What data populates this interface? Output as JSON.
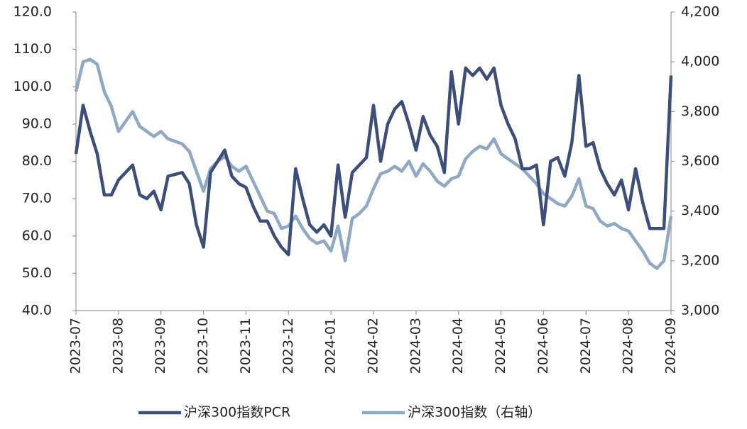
{
  "chart_data": {
    "type": "line",
    "categories": [
      "2023-07",
      null,
      null,
      null,
      null,
      null,
      "2023-08",
      null,
      null,
      null,
      null,
      null,
      "2023-09",
      null,
      null,
      null,
      null,
      null,
      "2023-10",
      null,
      null,
      null,
      null,
      null,
      "2023-11",
      null,
      null,
      null,
      null,
      null,
      "2023-12",
      null,
      null,
      null,
      null,
      null,
      "2024-01",
      null,
      null,
      null,
      null,
      null,
      "2024-02",
      null,
      null,
      null,
      null,
      null,
      "2024-03",
      null,
      null,
      null,
      null,
      null,
      "2024-04",
      null,
      null,
      null,
      null,
      null,
      "2024-05",
      null,
      null,
      null,
      null,
      null,
      "2024-06",
      null,
      null,
      null,
      null,
      null,
      "2024-07",
      null,
      null,
      null,
      null,
      null,
      "2024-08",
      null,
      null,
      null,
      null,
      null,
      "2024-09"
    ],
    "series": [
      {
        "name": "沪深300指数PCR",
        "color": "#3c4f7a",
        "values": [
          82,
          95,
          88,
          82,
          71,
          71,
          75,
          77,
          79,
          71,
          70,
          72,
          67,
          76,
          76.5,
          77,
          74,
          63,
          57,
          77,
          80,
          83,
          76,
          74,
          73,
          68,
          64,
          64,
          60,
          57,
          55,
          78,
          70,
          63,
          61,
          63,
          60,
          79,
          65,
          77,
          79,
          81,
          95,
          80,
          90,
          94,
          96,
          90,
          83,
          92,
          87,
          84,
          77,
          104,
          90,
          105,
          103,
          105,
          102,
          105,
          95,
          90,
          86,
          78,
          78,
          79,
          63,
          80,
          81,
          76,
          85,
          103,
          84,
          85,
          78,
          74,
          71,
          75,
          67,
          78,
          69,
          62,
          62,
          62,
          103
        ]
      },
      {
        "name": "沪深300指数（右轴）",
        "color": "#8fa8c6",
        "axis": "y2",
        "values": [
          3880,
          4000,
          4010,
          3990,
          3880,
          3820,
          3720,
          3760,
          3800,
          3740,
          3720,
          3700,
          3720,
          3690,
          3680,
          3670,
          3640,
          3560,
          3480,
          3570,
          3600,
          3620,
          3580,
          3560,
          3580,
          3520,
          3460,
          3400,
          3390,
          3330,
          3340,
          3380,
          3330,
          3290,
          3270,
          3280,
          3240,
          3340,
          3200,
          3370,
          3390,
          3420,
          3490,
          3550,
          3560,
          3580,
          3560,
          3600,
          3540,
          3590,
          3560,
          3520,
          3500,
          3530,
          3540,
          3610,
          3640,
          3660,
          3650,
          3690,
          3630,
          3610,
          3590,
          3570,
          3540,
          3510,
          3470,
          3450,
          3430,
          3420,
          3460,
          3530,
          3420,
          3410,
          3360,
          3340,
          3350,
          3330,
          3320,
          3280,
          3240,
          3190,
          3170,
          3200,
          3380
        ]
      }
    ],
    "ylim": [
      40,
      120
    ],
    "yticks": [
      {
        "value": 40,
        "label": "40.0"
      },
      {
        "value": 50,
        "label": "50.0"
      },
      {
        "value": 60,
        "label": "60.0"
      },
      {
        "value": 70,
        "label": "70.0"
      },
      {
        "value": 80,
        "label": "80.0"
      },
      {
        "value": 90,
        "label": "90.0"
      },
      {
        "value": 100,
        "label": "100.0"
      },
      {
        "value": 110,
        "label": "110.0"
      },
      {
        "value": 120,
        "label": "120.0"
      }
    ],
    "y2lim": [
      3000,
      4200
    ],
    "y2ticks": [
      {
        "value": 3000,
        "label": "3,000"
      },
      {
        "value": 3200,
        "label": "3,200"
      },
      {
        "value": 3400,
        "label": "3,400"
      },
      {
        "value": 3600,
        "label": "3,600"
      },
      {
        "value": 3800,
        "label": "3,800"
      },
      {
        "value": 4000,
        "label": "4,000"
      },
      {
        "value": 4200,
        "label": "4,200"
      }
    ],
    "legend": "bottom"
  }
}
